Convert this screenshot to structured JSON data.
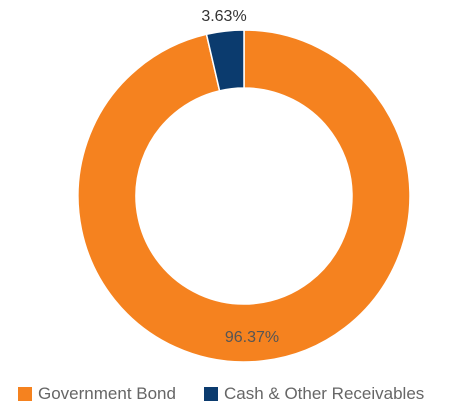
{
  "chart_data": {
    "type": "pie",
    "donut": true,
    "title": "",
    "categories": [
      "Government Bond",
      "Cash & Other Receivables"
    ],
    "values": [
      96.37,
      3.63
    ],
    "labels": [
      "96.37%",
      "3.63%"
    ],
    "colors": [
      "#F5821F",
      "#0B3B6E"
    ],
    "legend_position": "bottom"
  }
}
